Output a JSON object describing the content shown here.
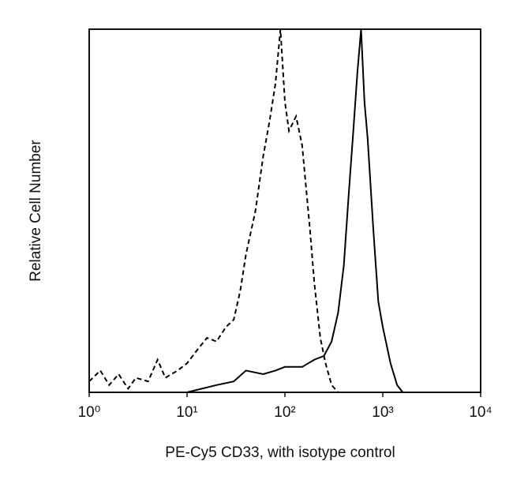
{
  "chart_data": {
    "type": "line",
    "xlabel": "PE-Cy5 CD33, with isotype control",
    "ylabel": "Relative Cell Number",
    "xscale": "log",
    "xlim": [
      1,
      10000
    ],
    "xticks": [
      {
        "value": 1,
        "label": "10⁰"
      },
      {
        "value": 10,
        "label": "10¹"
      },
      {
        "value": 100,
        "label": "10²"
      },
      {
        "value": 1000,
        "label": "10³"
      },
      {
        "value": 10000,
        "label": "10⁴"
      }
    ],
    "ylim": [
      0,
      100
    ],
    "series": [
      {
        "color": "#000000",
        "dashed": true,
        "x": [
          1,
          1.3,
          1.6,
          2,
          2.5,
          3,
          4,
          5,
          6,
          8,
          10,
          13,
          16,
          20,
          25,
          30,
          35,
          40,
          50,
          60,
          70,
          80,
          90,
          100,
          110,
          130,
          150,
          180,
          200,
          230,
          260,
          300,
          350
        ],
        "values": [
          3,
          6,
          2,
          5,
          1,
          4,
          3,
          9,
          4,
          6,
          8,
          12,
          15,
          14,
          18,
          20,
          28,
          38,
          50,
          65,
          75,
          85,
          100,
          80,
          72,
          76,
          68,
          45,
          30,
          15,
          8,
          2,
          0
        ]
      },
      {
        "color": "#000000",
        "dashed": false,
        "x": [
          10,
          20,
          30,
          40,
          60,
          80,
          100,
          150,
          200,
          250,
          300,
          350,
          400,
          450,
          500,
          550,
          600,
          650,
          700,
          800,
          900,
          1000,
          1200,
          1400,
          1600
        ],
        "values": [
          0,
          2,
          3,
          6,
          5,
          6,
          7,
          7,
          9,
          10,
          14,
          22,
          35,
          55,
          72,
          88,
          100,
          80,
          70,
          45,
          25,
          18,
          8,
          2,
          0
        ]
      }
    ]
  }
}
